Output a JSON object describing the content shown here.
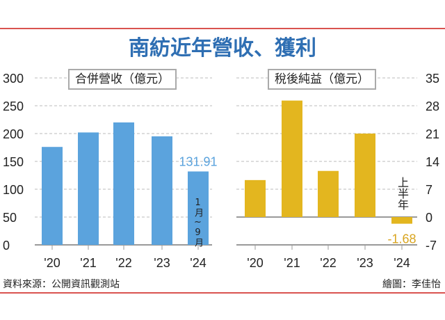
{
  "title": "南紡近年營收、獲利",
  "source": "資料來源：公開資訊觀測站",
  "credit": "繪圖：李佳怡",
  "chart_data": [
    {
      "type": "bar",
      "title": "合併營收（億元）",
      "categories": [
        "'20",
        "'21",
        "'22",
        "'23",
        "'24"
      ],
      "values": [
        176,
        202,
        220,
        195,
        131.91
      ],
      "ylim": [
        0,
        300
      ],
      "yticks": [
        0,
        50,
        100,
        150,
        200,
        250,
        300
      ],
      "color": "#5ba3dd",
      "data_label": "131.91",
      "annotation": "1月~9月",
      "grid": true
    },
    {
      "type": "bar",
      "title": "稅後純益（億元）",
      "categories": [
        "'20",
        "'21",
        "'22",
        "'23",
        "'24"
      ],
      "values": [
        9.3,
        29.3,
        11.6,
        21,
        -1.68
      ],
      "ylim": [
        -7,
        35
      ],
      "yticks": [
        -7,
        0,
        7,
        14,
        21,
        28,
        35
      ],
      "color": "#e3b61f",
      "data_label": "-1.68",
      "annotation": "上半年",
      "grid": true
    }
  ]
}
